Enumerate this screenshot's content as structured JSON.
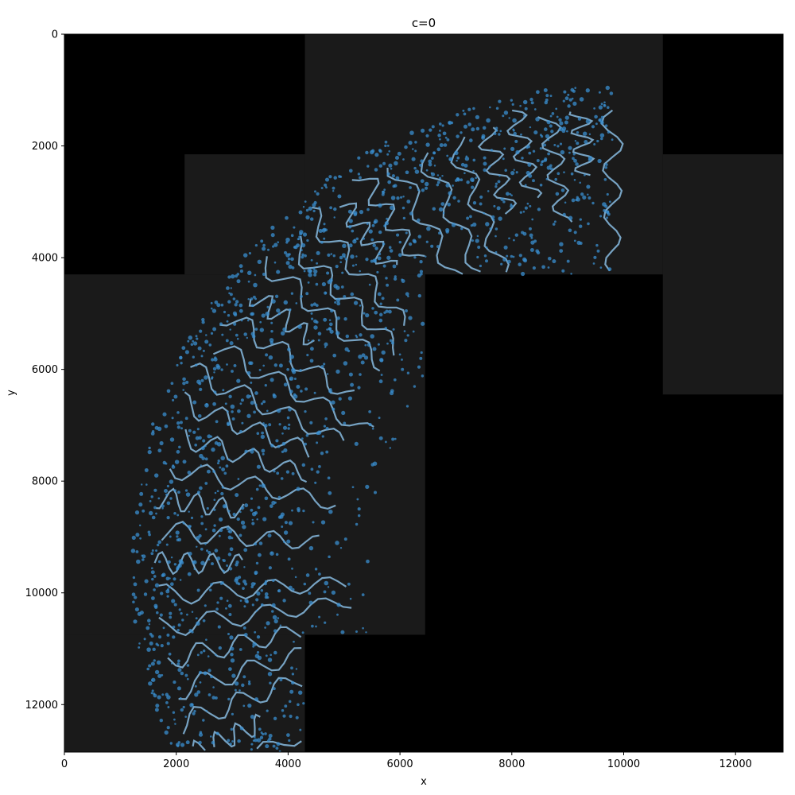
{
  "title": "c=0",
  "xlabel": "x",
  "ylabel": "y",
  "x_ticks": [
    "0",
    "2000",
    "4000",
    "6000",
    "8000",
    "10000",
    "12000"
  ],
  "y_ticks": [
    "0",
    "2000",
    "4000",
    "6000",
    "8000",
    "10000",
    "12000"
  ],
  "x_tick_values": [
    0,
    2000,
    4000,
    6000,
    8000,
    10000,
    12000
  ],
  "y_tick_values": [
    0,
    2000,
    4000,
    6000,
    8000,
    10000,
    12000
  ],
  "xlim": [
    0,
    12850
  ],
  "ylim": [
    12850,
    0
  ],
  "image": {
    "type": "fluorescence microscopy mosaic with overlaid cell points",
    "background_color": "#000000",
    "tissue_color": "#1a1a1a",
    "point_color": "#3a8fd0",
    "tiles_with_tissue": [
      {
        "x0": 4300,
        "y0": 0,
        "x1": 10700,
        "y1": 4300
      },
      {
        "x0": 2150,
        "y0": 2150,
        "x1": 4300,
        "y1": 4300
      },
      {
        "x0": 0,
        "y0": 4300,
        "x1": 6450,
        "y1": 10750
      },
      {
        "x0": 10700,
        "y0": 2150,
        "x1": 12850,
        "y1": 6450
      },
      {
        "x0": 0,
        "y0": 10750,
        "x1": 4300,
        "y1": 12850
      }
    ]
  }
}
